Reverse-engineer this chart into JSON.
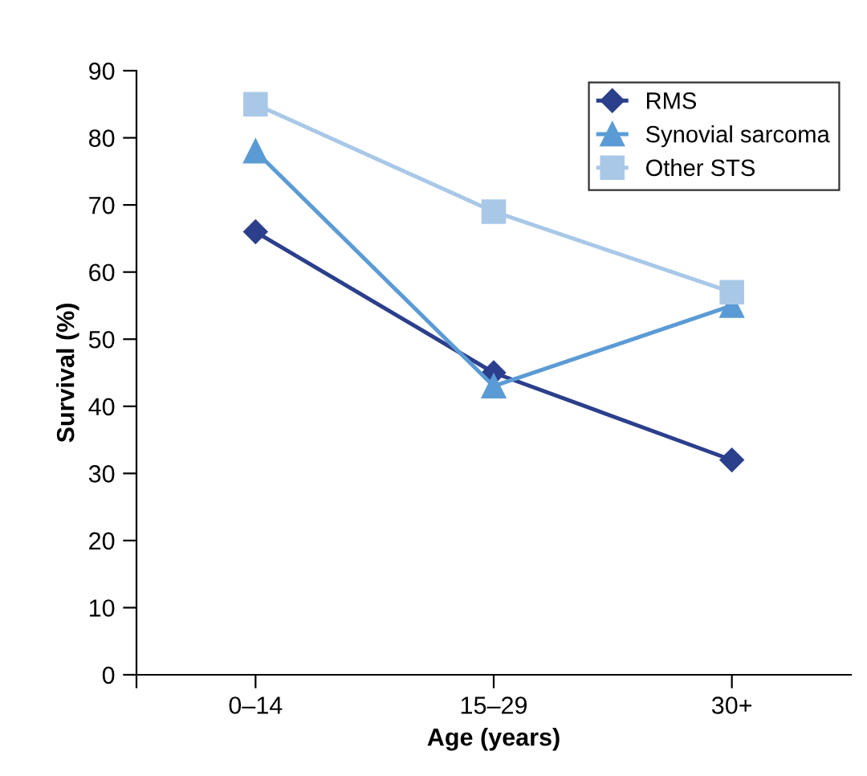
{
  "chart_data": {
    "type": "line",
    "xlabel": "Age (years)",
    "ylabel": "Survival (%)",
    "categories": [
      "0–14",
      "15–29",
      "30+"
    ],
    "series": [
      {
        "name": "RMS",
        "color": "#2b3f8c",
        "marker": "diamond",
        "values": [
          66,
          45,
          32
        ]
      },
      {
        "name": "Synovial sarcoma",
        "color": "#5b9bd5",
        "marker": "triangle",
        "values": [
          78,
          43,
          55
        ]
      },
      {
        "name": "Other STS",
        "color": "#a9c8e8",
        "marker": "square",
        "values": [
          85,
          69,
          57
        ]
      }
    ],
    "ylim": [
      0,
      90
    ],
    "yticks": [
      0,
      10,
      20,
      30,
      40,
      50,
      60,
      70,
      80,
      90
    ],
    "grid": false,
    "legend": "top right",
    "line_style": "solid"
  }
}
